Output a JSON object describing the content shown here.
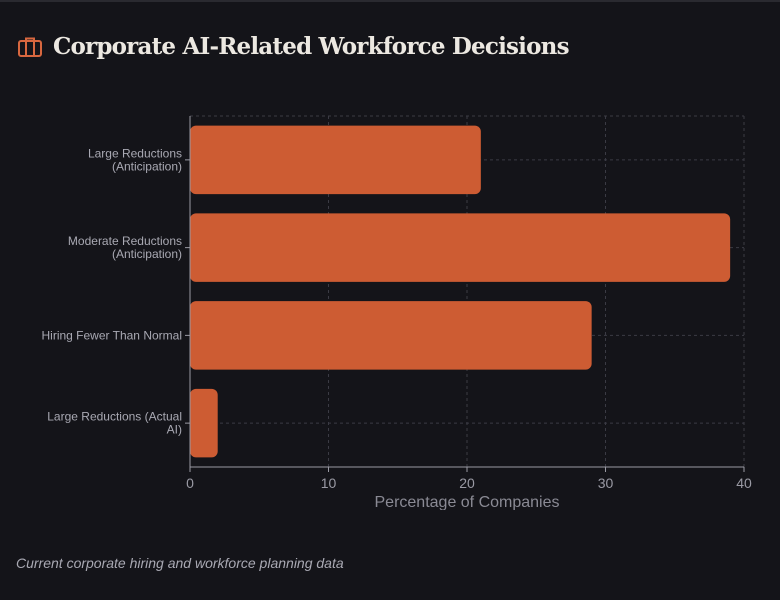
{
  "header": {
    "title": "Corporate AI-Related Workforce Decisions",
    "icon": "briefcase-icon"
  },
  "footer": {
    "caption": "Current corporate hiring and workforce planning data"
  },
  "colors": {
    "bar": "#cd5c33",
    "accent": "#d8673f",
    "background": "#141419"
  },
  "chart_data": {
    "type": "bar",
    "orientation": "horizontal",
    "categories": [
      [
        "Large Reductions",
        "(Anticipation)"
      ],
      [
        "Moderate Reductions",
        "(Anticipation)"
      ],
      [
        "Hiring Fewer Than Normal"
      ],
      [
        "Large Reductions (Actual",
        "AI)"
      ]
    ],
    "values": [
      21,
      39,
      29,
      2
    ],
    "xlabel": "Percentage of Companies",
    "ylabel": "",
    "xlim": [
      0,
      40
    ],
    "xticks": [
      0,
      10,
      20,
      30,
      40
    ],
    "grid": true
  }
}
